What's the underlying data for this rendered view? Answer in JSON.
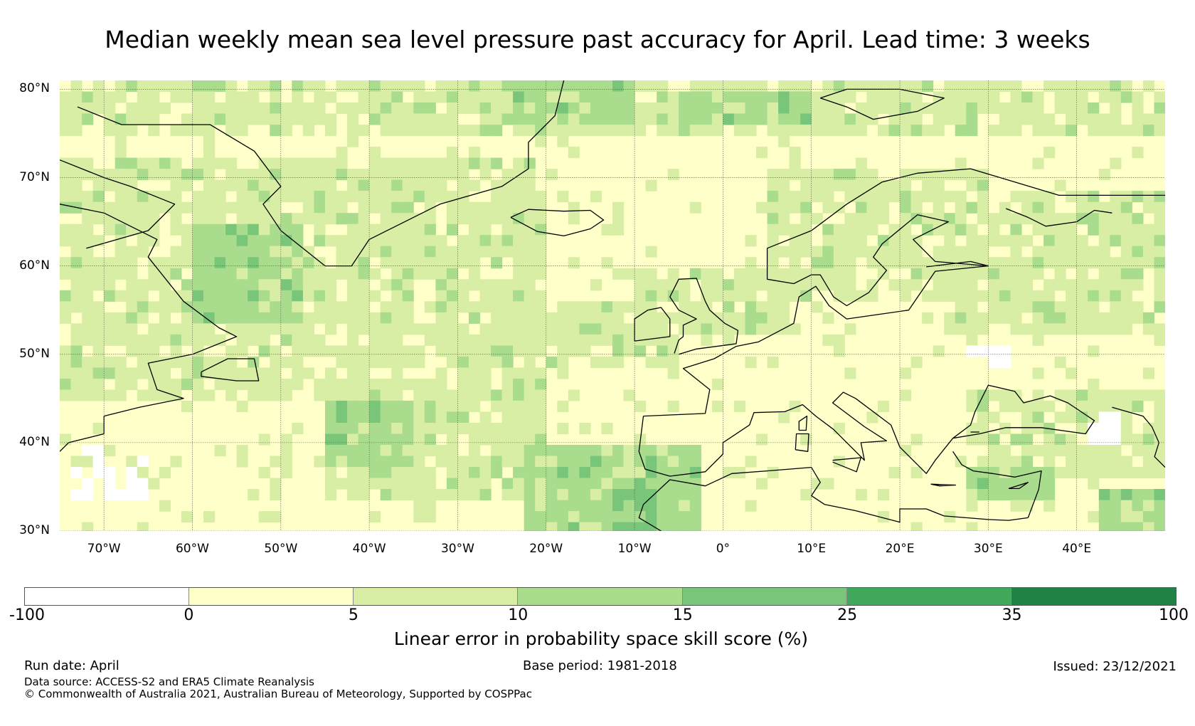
{
  "title": "Median weekly mean sea level pressure past accuracy for April. Lead time: 3 weeks",
  "map": {
    "extent": {
      "lon_min": -75,
      "lon_max": 50,
      "lat_min": 30,
      "lat_max": 81
    },
    "lat_ticks": [
      {
        "value": 80,
        "label": "80°N"
      },
      {
        "value": 70,
        "label": "70°N"
      },
      {
        "value": 60,
        "label": "60°N"
      },
      {
        "value": 50,
        "label": "50°N"
      },
      {
        "value": 40,
        "label": "40°N"
      },
      {
        "value": 30,
        "label": "30°N"
      }
    ],
    "lon_ticks": [
      {
        "value": -70,
        "label": "70°W"
      },
      {
        "value": -60,
        "label": "60°W"
      },
      {
        "value": -50,
        "label": "50°W"
      },
      {
        "value": -40,
        "label": "40°W"
      },
      {
        "value": -30,
        "label": "30°W"
      },
      {
        "value": -20,
        "label": "20°W"
      },
      {
        "value": -10,
        "label": "10°W"
      },
      {
        "value": 0,
        "label": "0°"
      },
      {
        "value": 10,
        "label": "10°E"
      },
      {
        "value": 20,
        "label": "20°E"
      },
      {
        "value": 30,
        "label": "30°E"
      },
      {
        "value": 40,
        "label": "40°E"
      }
    ],
    "regions": [
      {
        "name": "north-atlantic-band",
        "lon": [
          -75,
          -20
        ],
        "lat": [
          45,
          72
        ],
        "level": 2
      },
      {
        "name": "labrador-sea",
        "lon": [
          -60,
          -47
        ],
        "lat": [
          53,
          65
        ],
        "level": 3
      },
      {
        "name": "arctic-band",
        "lon": [
          -75,
          50
        ],
        "lat": [
          75,
          81
        ],
        "level": 2
      },
      {
        "name": "greenland-sea",
        "lon": [
          -25,
          -10
        ],
        "lat": [
          76,
          81
        ],
        "level": 3
      },
      {
        "name": "svalbard-area",
        "lon": [
          -5,
          10
        ],
        "lat": [
          76,
          80
        ],
        "level": 3
      },
      {
        "name": "central-atlantic",
        "lon": [
          -45,
          -20
        ],
        "lat": [
          33,
          52
        ],
        "level": 2
      },
      {
        "name": "mid-atlantic-west",
        "lon": [
          -45,
          -35
        ],
        "lat": [
          37,
          45
        ],
        "level": 3
      },
      {
        "name": "azores-south",
        "lon": [
          -23,
          -3
        ],
        "lat": [
          30,
          40
        ],
        "level": 3
      },
      {
        "name": "morocco-coast",
        "lon": [
          -13,
          -7
        ],
        "lat": [
          30,
          35
        ],
        "level": 4
      },
      {
        "name": "scandinavia",
        "lon": [
          5,
          30
        ],
        "lat": [
          56,
          71
        ],
        "level": 2
      },
      {
        "name": "eastern-europe",
        "lon": [
          25,
          50
        ],
        "lat": [
          52,
          68
        ],
        "level": 2
      },
      {
        "name": "black-sea-area",
        "lon": [
          28,
          50
        ],
        "lat": [
          36,
          46
        ],
        "level": 2
      },
      {
        "name": "turkey-south",
        "lon": [
          28,
          38
        ],
        "lat": [
          33,
          37
        ],
        "level": 3
      },
      {
        "name": "caspian-south",
        "lon": [
          42,
          50
        ],
        "lat": [
          30,
          35
        ],
        "level": 3
      },
      {
        "name": "north-sea",
        "lon": [
          -10,
          8
        ],
        "lat": [
          52,
          60
        ],
        "level": 2
      },
      {
        "name": "irish-atlantic",
        "lon": [
          -20,
          -5
        ],
        "lat": [
          48,
          56
        ],
        "level": 2
      }
    ],
    "white_patches": [
      {
        "name": "us-east-coast",
        "lon": [
          -74,
          -65
        ],
        "lat": [
          33,
          40
        ]
      },
      {
        "name": "ukraine-patch",
        "lon": [
          28,
          33
        ],
        "lat": [
          48,
          51
        ]
      },
      {
        "name": "caspian-patch",
        "lon": [
          39,
          45
        ],
        "lat": [
          40,
          44
        ]
      }
    ]
  },
  "colorbar": {
    "ticks": [
      "-100",
      "0",
      "5",
      "10",
      "15",
      "25",
      "35",
      "100"
    ],
    "colors": [
      "#ffffff",
      "#feffc9",
      "#d9eea5",
      "#a9dc8d",
      "#79c67a",
      "#40a85a",
      "#218245"
    ],
    "label": "Linear error in probability space skill score (%)"
  },
  "footer": {
    "run_date": "Run date: April",
    "base_period": "Base period: 1981-2018",
    "issued": "Issued: 23/12/2021",
    "data_source": "Data source: ACCESS-S2 and ERA5 Climate Reanalysis",
    "copyright": "© Commonwealth of Australia 2021, Australian Bureau of Meteorology, Supported by COSPPac"
  }
}
